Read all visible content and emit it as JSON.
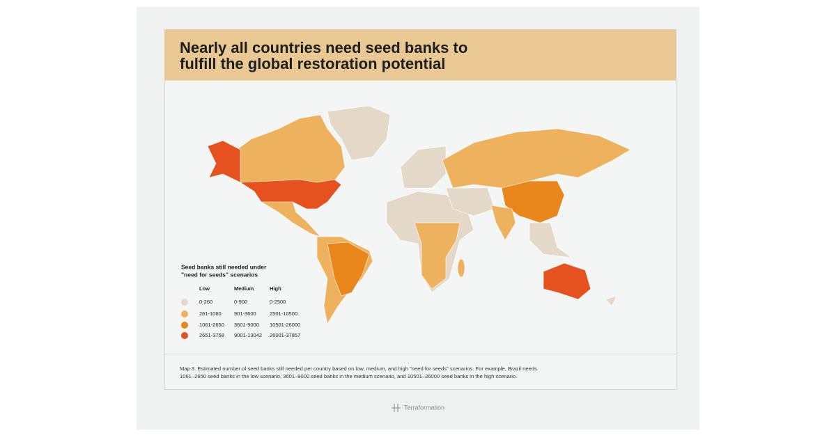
{
  "header": {
    "title_lines": [
      "Nearly all countries need seed banks to",
      "fulfill the global restoration potential"
    ]
  },
  "legend": {
    "title_lines": [
      "Seed banks still needed under",
      "\"need for seeds\" scenarios"
    ],
    "columns": [
      "Low",
      "Medium",
      "High"
    ],
    "rows": [
      {
        "color": "#e4d9c8",
        "low": "0-260",
        "medium": "0-900",
        "high": "0-2500"
      },
      {
        "color": "#eeb25e",
        "low": "261-1060",
        "medium": "901-3600",
        "high": "2501-10500"
      },
      {
        "color": "#e9861c",
        "low": "1061-2650",
        "medium": "3601-9000",
        "high": "10501-26000"
      },
      {
        "color": "#e5521f",
        "low": "2651-3758",
        "medium": "9001-13042",
        "high": "26001-37857"
      }
    ]
  },
  "caption": {
    "lines": [
      "Map 3. Estimated number of seed banks still needed per country based on low, medium, and high \"need for seeds\" scenarios. For example, Brazil needs",
      "1061–2650 seed banks in the low scenario, 3601–9000 seed banks in the medium scenario, and 10501–26000 seed banks in the high scenario."
    ]
  },
  "footer": {
    "brand": "Terraformation"
  }
}
